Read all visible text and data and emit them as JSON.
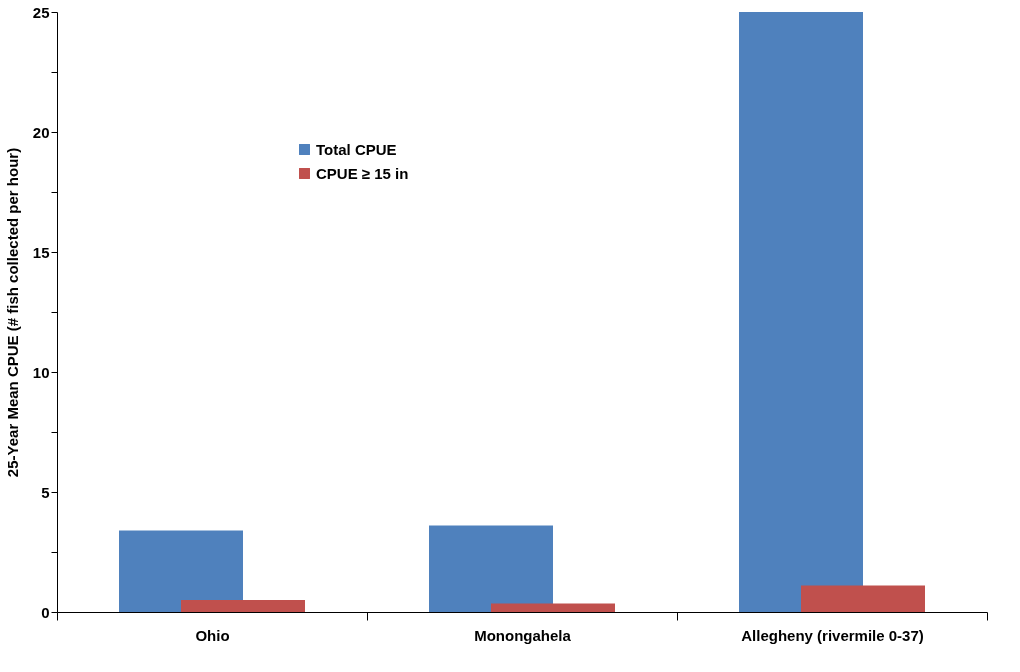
{
  "chart_data": {
    "type": "bar",
    "ylabel": "25-Year Mean CPUE (# fish collected per hour)",
    "categories": [
      "Ohio",
      "Monongahela",
      "Allegheny (rivermile 0-37)"
    ],
    "series": [
      {
        "name": "Total CPUE",
        "color": "#4f81bd",
        "values": [
          3.4,
          3.6,
          25.0
        ]
      },
      {
        "name": "CPUE ≥ 15 in",
        "color": "#c0504d",
        "values": [
          0.5,
          0.35,
          1.1
        ]
      }
    ],
    "ylim": [
      0,
      25
    ],
    "yticks": [
      0,
      {
        "value": 2.5,
        "label": null
      },
      5,
      {
        "value": 7.5,
        "label": null
      },
      10,
      {
        "value": 12.5,
        "label": null
      },
      15,
      {
        "value": 17.5,
        "label": null
      },
      20,
      {
        "value": 22.5,
        "label": null
      },
      25
    ],
    "grid": false,
    "legend": "top left"
  }
}
